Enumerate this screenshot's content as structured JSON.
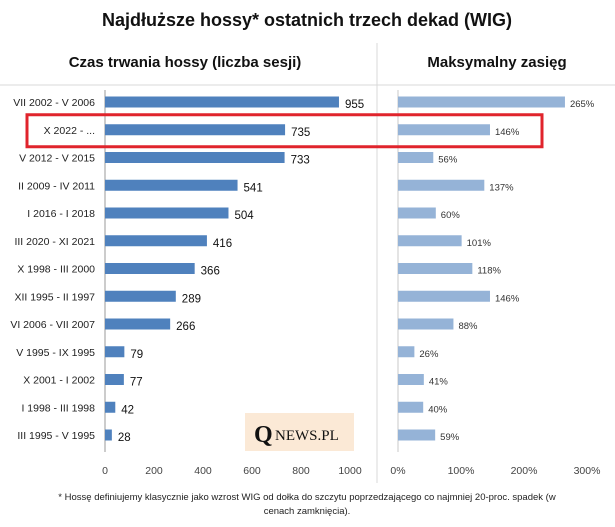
{
  "chart_data": [
    {
      "type": "bar",
      "orientation": "horizontal",
      "title": "Najdłuższe hossy* ostatnich trzech dekad (WIG)",
      "subtitle": "Czas trwania hossy (liczba sesji)",
      "categories": [
        "VII 2002 - V 2006",
        "X 2022 - ...",
        "V 2012 - V 2015",
        "II 2009 - IV 2011",
        "I 2016 - I 2018",
        "III 2020 - XI 2021",
        "X 1998 - III 2000",
        "XII 1995 - II 1997",
        "VI 2006 - VII 2007",
        "V 1995 - IX 1995",
        "X 2001 - I 2002",
        "I 1998 - III 1998",
        "III 1995 - V 1995"
      ],
      "values": [
        955,
        735,
        733,
        541,
        504,
        416,
        366,
        289,
        266,
        79,
        77,
        42,
        28
      ],
      "xlim": [
        0,
        1000
      ],
      "xticks": [
        "0",
        "200",
        "400",
        "600",
        "800",
        "1000"
      ],
      "bar_color": "#4f81bd"
    },
    {
      "type": "bar",
      "orientation": "horizontal",
      "subtitle": "Maksymalny zasięg",
      "values": [
        265,
        146,
        56,
        137,
        60,
        101,
        118,
        146,
        88,
        26,
        41,
        40,
        59
      ],
      "value_labels": [
        "265%",
        "146%",
        "56%",
        "137%",
        "60%",
        "101%",
        "118%",
        "146%",
        "88%",
        "26%",
        "41%",
        "40%",
        "59%"
      ],
      "xlim": [
        0,
        300
      ],
      "xticks": [
        "0%",
        "100%",
        "200%",
        "300%"
      ],
      "bar_color": "#95b3d7"
    }
  ],
  "highlight": {
    "row_index": 1,
    "color": "#e0242c"
  },
  "logo": {
    "q": "Q",
    "text": "NEWS.PL"
  },
  "footnote": {
    "line1": "* Hossę definiujemy klasycznie jako wzrost WIG od dołka do szczytu poprzedzającego co najmniej 20-proc. spadek (w",
    "line2": "cenach zamknięcia)."
  }
}
